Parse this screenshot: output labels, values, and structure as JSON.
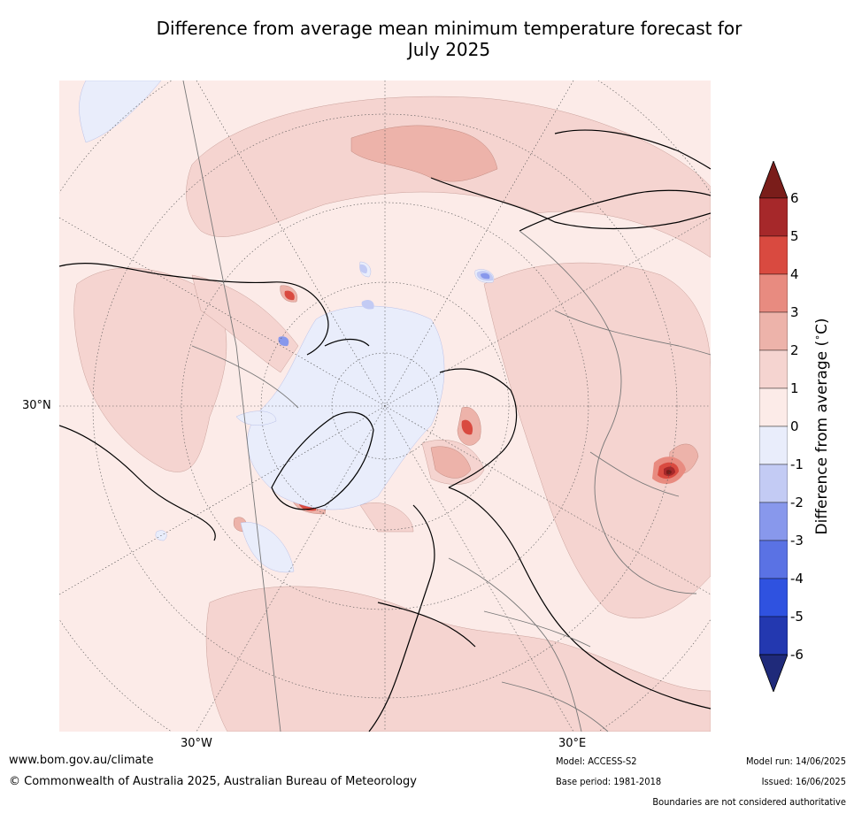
{
  "title": {
    "line1": "Difference from average mean minimum temperature forecast for",
    "line2": "July 2025"
  },
  "map": {
    "projection": "north-polar-stereographic",
    "background_anomaly_bin": "0 to 1",
    "lat_label": "30°N",
    "lon_labels": [
      "30°W",
      "30°E"
    ]
  },
  "colorbar": {
    "label": "Difference from average (°C)",
    "label_parts": {
      "prefix": "Difference from average (",
      "degree": "∘",
      "unit": "C)"
    },
    "ticks": [
      "6",
      "5",
      "4",
      "3",
      "2",
      "1",
      "0",
      "-1",
      "-2",
      "-3",
      "-4",
      "-5",
      "-6"
    ],
    "colors": [
      "#7a1d1a",
      "#a6282a",
      "#d94a40",
      "#e88b80",
      "#edb3aa",
      "#f5d4d0",
      "#fcebe8",
      "#e9edfb",
      "#c3cbf4",
      "#8898ec",
      "#5a72e4",
      "#2f52e0",
      "#2338b0",
      "#1f2a7a"
    ],
    "extend": "both"
  },
  "footer": {
    "url": "www.bom.gov.au/climate",
    "copyright": "© Commonwealth of Australia 2025, Australian Bureau of Meteorology",
    "model": "Model: ACCESS-S2",
    "base_period": "Base period: 1981-2018",
    "model_run": "Model run: 14/06/2025",
    "issued": "Issued: 16/06/2025",
    "disclaimer": "Boundaries are not considered authoritative"
  }
}
